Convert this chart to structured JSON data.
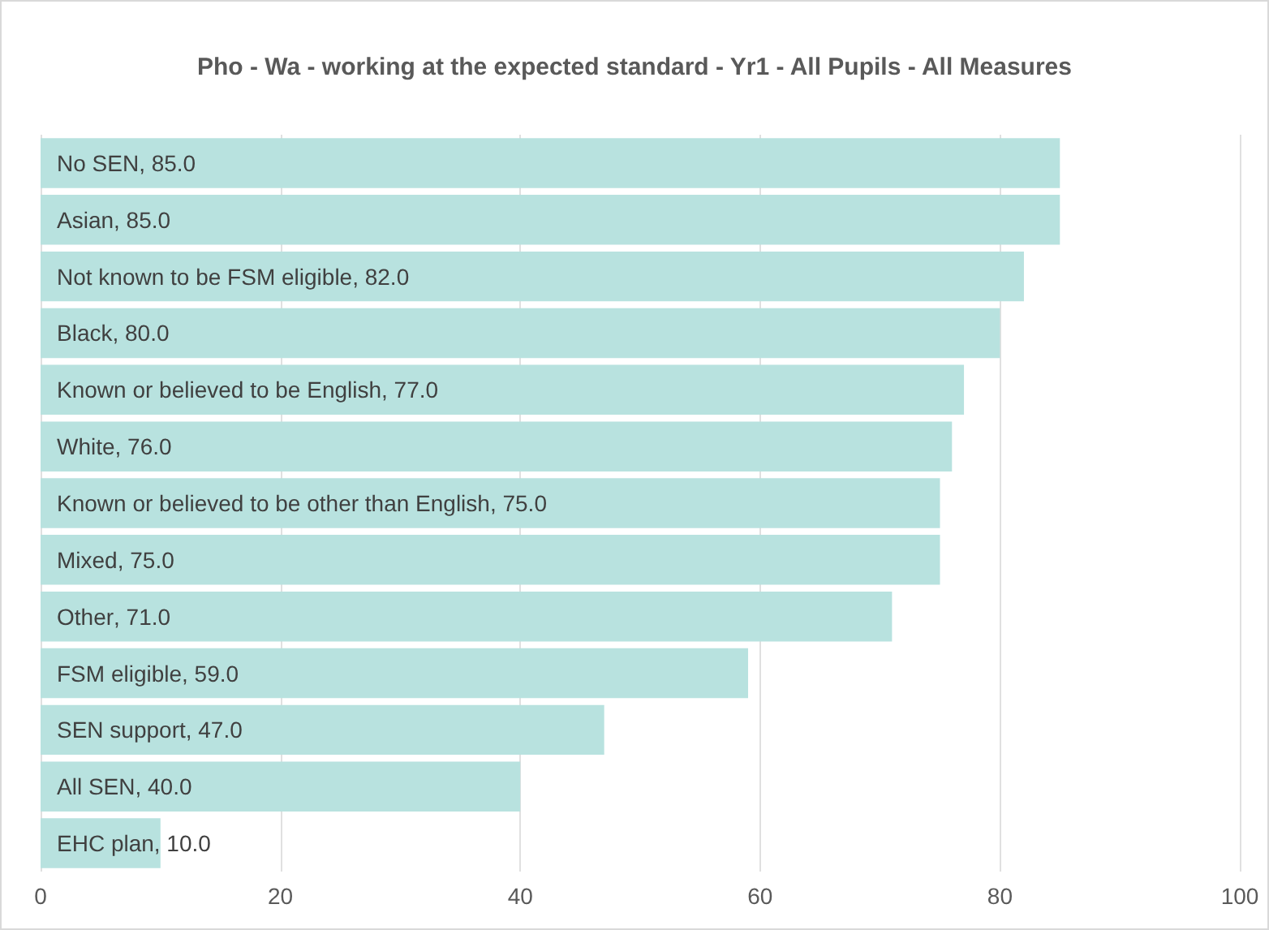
{
  "chart_data": {
    "type": "bar",
    "orientation": "horizontal",
    "title": "Pho - Wa - working at the expected standard - Yr1 - All Pupils - All Measures",
    "categories": [
      "No SEN",
      "Asian",
      "Not known to be FSM eligible",
      "Black",
      "Known or believed to be English",
      "White",
      "Known or believed to be other than English",
      "Mixed",
      "Other",
      "FSM eligible",
      "SEN support",
      "All SEN",
      "EHC plan"
    ],
    "values": [
      85,
      85,
      82,
      80,
      77,
      76,
      75,
      75,
      71,
      59,
      47,
      40,
      10
    ],
    "value_labels": [
      ", 85.0",
      ", 85.0",
      ", 82.0",
      ", 80.0",
      ", 77.0",
      ", 76.0",
      ", 75.0",
      ", 75.0",
      ", 71.0",
      ", 59.0",
      ", 47.0",
      ", 40.0",
      ", 10.0"
    ],
    "color": "#b8e2df",
    "xlim": [
      0,
      100
    ],
    "xticks": [
      0,
      20,
      40,
      60,
      80,
      100
    ],
    "grid": "x",
    "tick_labels": "x"
  }
}
